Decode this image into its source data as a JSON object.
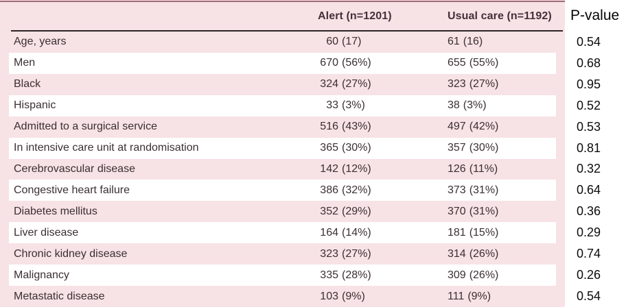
{
  "header": {
    "col_alert": "Alert (n=1201)",
    "col_usual": "Usual care (n=1192)",
    "col_pvalue": "P-value"
  },
  "rows": [
    {
      "label": "Age, years",
      "alert_n": "60",
      "alert_paren": "(17)",
      "usual_n": "61",
      "usual_paren": "(16)",
      "p": "0.54"
    },
    {
      "label": "Men",
      "alert_n": "670",
      "alert_paren": "(56%)",
      "usual_n": "655",
      "usual_paren": "(55%)",
      "p": "0.68"
    },
    {
      "label": "Black",
      "alert_n": "324",
      "alert_paren": "(27%)",
      "usual_n": "323",
      "usual_paren": "(27%)",
      "p": "0.95"
    },
    {
      "label": "Hispanic",
      "alert_n": "33",
      "alert_paren": "(3%)",
      "usual_n": "38",
      "usual_paren": "(3%)",
      "p": "0.52"
    },
    {
      "label": "Admitted to a surgical service",
      "alert_n": "516",
      "alert_paren": "(43%)",
      "usual_n": "497",
      "usual_paren": "(42%)",
      "p": "0.53"
    },
    {
      "label": "In intensive care unit at randomisation",
      "alert_n": "365",
      "alert_paren": "(30%)",
      "usual_n": "357",
      "usual_paren": "(30%)",
      "p": "0.81"
    },
    {
      "label": "Cerebrovascular disease",
      "alert_n": "142",
      "alert_paren": "(12%)",
      "usual_n": "126",
      "usual_paren": "(11%)",
      "p": "0.32"
    },
    {
      "label": "Congestive heart failure",
      "alert_n": "386",
      "alert_paren": "(32%)",
      "usual_n": "373",
      "usual_paren": "(31%)",
      "p": "0.64"
    },
    {
      "label": "Diabetes mellitus",
      "alert_n": "352",
      "alert_paren": "(29%)",
      "usual_n": "370",
      "usual_paren": "(31%)",
      "p": "0.36"
    },
    {
      "label": "Liver disease",
      "alert_n": "164",
      "alert_paren": "(14%)",
      "usual_n": "181",
      "usual_paren": "(15%)",
      "p": "0.29"
    },
    {
      "label": "Chronic kidney disease",
      "alert_n": "323",
      "alert_paren": "(27%)",
      "usual_n": "314",
      "usual_paren": "(26%)",
      "p": "0.74"
    },
    {
      "label": "Malignancy",
      "alert_n": "335",
      "alert_paren": "(28%)",
      "usual_n": "309",
      "usual_paren": "(26%)",
      "p": "0.26"
    },
    {
      "label": "Metastatic disease",
      "alert_n": "103",
      "alert_paren": "(9%)",
      "usual_n": "111",
      "usual_paren": "(9%)",
      "p": "0.54"
    }
  ],
  "colors": {
    "table_pink": "#f7e2e5",
    "stripe_white": "#ffffff",
    "top_rule": "#a06b7b",
    "header_rule": "#2d2426",
    "header_text": "#44303a",
    "body_text": "#3a2f31",
    "pvalue_text": "#0b0b0b"
  }
}
